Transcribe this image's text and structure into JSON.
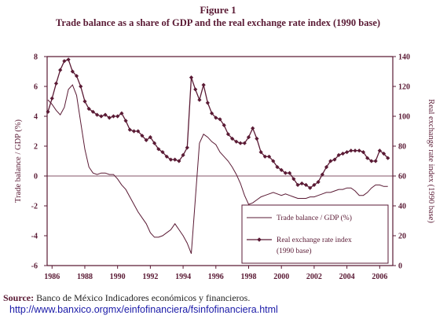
{
  "figure_label": "Figure 1",
  "title": "Trade balance as a share of GDP and the real exchange rate index (1990 base)",
  "source_label": "Source:",
  "source_text": "Banco de México Indicadores económicos y financieros.",
  "source_url": "http://www.banxico.orgmx/einfofinanciera/fsinfofinanciera.html",
  "colors": {
    "line": "#5a1a34",
    "axis": "#5a1a34"
  },
  "chart_data": {
    "type": "line",
    "xlim": [
      1985.7,
      2006.8
    ],
    "x_ticks": [
      1986,
      1988,
      1990,
      1992,
      1994,
      1996,
      1998,
      2000,
      2002,
      2004,
      2006
    ],
    "left_axis": {
      "label": "Trade balance / GDP (%)",
      "ylim": [
        -6,
        8
      ],
      "ticks": [
        -6,
        -4,
        -2,
        0,
        2,
        4,
        6,
        8
      ]
    },
    "right_axis": {
      "label": "Real exchange rate index (1990 base)",
      "ylim": [
        0,
        140
      ],
      "ticks": [
        0,
        20,
        40,
        60,
        80,
        100,
        120,
        140
      ]
    },
    "legend": {
      "position": "bottom-right",
      "trade_label": "Trade balance / GDP (%)",
      "rer_label": "Real exchange rate index",
      "rer_label2": "(1990 base)"
    },
    "series": [
      {
        "name": "Trade balance / GDP (%)",
        "axis": "left",
        "marker": "none",
        "x": [
          1985.75,
          1986.0,
          1986.25,
          1986.5,
          1986.75,
          1987.0,
          1987.25,
          1987.5,
          1987.75,
          1988.0,
          1988.25,
          1988.5,
          1988.75,
          1989.0,
          1989.25,
          1989.5,
          1989.75,
          1990.0,
          1990.25,
          1990.5,
          1990.75,
          1991.0,
          1991.25,
          1991.5,
          1991.75,
          1992.0,
          1992.25,
          1992.5,
          1992.75,
          1993.0,
          1993.25,
          1993.5,
          1993.75,
          1994.0,
          1994.25,
          1994.5,
          1994.75,
          1995.0,
          1995.25,
          1995.5,
          1995.75,
          1996.0,
          1996.25,
          1996.5,
          1996.75,
          1997.0,
          1997.25,
          1997.5,
          1997.75,
          1998.0,
          1998.25,
          1998.5,
          1998.75,
          1999.0,
          1999.25,
          1999.5,
          1999.75,
          2000.0,
          2000.25,
          2000.5,
          2000.75,
          2001.0,
          2001.25,
          2001.5,
          2001.75,
          2002.0,
          2002.25,
          2002.5,
          2002.75,
          2003.0,
          2003.25,
          2003.5,
          2003.75,
          2004.0,
          2004.25,
          2004.5,
          2004.75,
          2005.0,
          2005.25,
          2005.5,
          2005.75,
          2006.0,
          2006.25,
          2006.5
        ],
        "values": [
          5.1,
          4.8,
          4.4,
          4.1,
          4.6,
          5.8,
          6.1,
          5.4,
          3.6,
          1.8,
          0.6,
          0.2,
          0.1,
          0.2,
          0.2,
          0.1,
          0.1,
          -0.2,
          -0.6,
          -0.9,
          -1.4,
          -1.9,
          -2.4,
          -2.8,
          -3.2,
          -3.8,
          -4.1,
          -4.1,
          -4.0,
          -3.8,
          -3.6,
          -3.2,
          -3.6,
          -4.0,
          -4.5,
          -5.2,
          -1.5,
          2.2,
          2.8,
          2.6,
          2.3,
          2.1,
          1.6,
          1.3,
          1.0,
          0.6,
          0.1,
          -0.5,
          -1.3,
          -1.9,
          -1.8,
          -1.6,
          -1.4,
          -1.3,
          -1.2,
          -1.1,
          -1.2,
          -1.3,
          -1.2,
          -1.3,
          -1.4,
          -1.5,
          -1.5,
          -1.5,
          -1.4,
          -1.4,
          -1.3,
          -1.2,
          -1.1,
          -1.1,
          -1.0,
          -0.9,
          -0.9,
          -0.8,
          -0.8,
          -1.0,
          -1.3,
          -1.3,
          -1.1,
          -0.8,
          -0.6,
          -0.6,
          -0.7,
          -0.7
        ]
      },
      {
        "name": "Real exchange rate index (1990 base)",
        "axis": "right",
        "marker": "diamond",
        "x": [
          1985.75,
          1986.0,
          1986.25,
          1986.5,
          1986.75,
          1987.0,
          1987.25,
          1987.5,
          1987.75,
          1988.0,
          1988.25,
          1988.5,
          1988.75,
          1989.0,
          1989.25,
          1989.5,
          1989.75,
          1990.0,
          1990.25,
          1990.5,
          1990.75,
          1991.0,
          1991.25,
          1991.5,
          1991.75,
          1992.0,
          1992.25,
          1992.5,
          1992.75,
          1993.0,
          1993.25,
          1993.5,
          1993.75,
          1994.0,
          1994.25,
          1994.5,
          1994.75,
          1995.0,
          1995.25,
          1995.5,
          1995.75,
          1996.0,
          1996.25,
          1996.5,
          1996.75,
          1997.0,
          1997.25,
          1997.5,
          1997.75,
          1998.0,
          1998.25,
          1998.5,
          1998.75,
          1999.0,
          1999.25,
          1999.5,
          1999.75,
          2000.0,
          2000.25,
          2000.5,
          2000.75,
          2001.0,
          2001.25,
          2001.5,
          2001.75,
          2002.0,
          2002.25,
          2002.5,
          2002.75,
          2003.0,
          2003.25,
          2003.5,
          2003.75,
          2004.0,
          2004.25,
          2004.5,
          2004.75,
          2005.0,
          2005.25,
          2005.5,
          2005.75,
          2006.0,
          2006.25,
          2006.5
        ],
        "values": [
          103,
          112,
          122,
          131,
          137,
          138,
          130,
          127,
          120,
          110,
          105,
          103,
          101,
          100,
          101,
          99,
          100,
          100,
          102,
          97,
          91,
          90,
          90,
          87,
          84,
          86,
          82,
          78,
          76,
          73,
          71,
          71,
          70,
          74,
          79,
          126,
          118,
          111,
          121,
          109,
          102,
          99,
          98,
          94,
          88,
          85,
          83,
          82,
          82,
          86,
          92,
          85,
          76,
          73,
          73,
          70,
          66,
          64,
          62,
          62,
          58,
          54,
          55,
          54,
          52,
          54,
          56,
          61,
          66,
          70,
          71,
          74,
          75,
          76,
          77,
          77,
          77,
          76,
          72,
          70,
          70,
          77,
          75,
          72
        ]
      }
    ]
  }
}
